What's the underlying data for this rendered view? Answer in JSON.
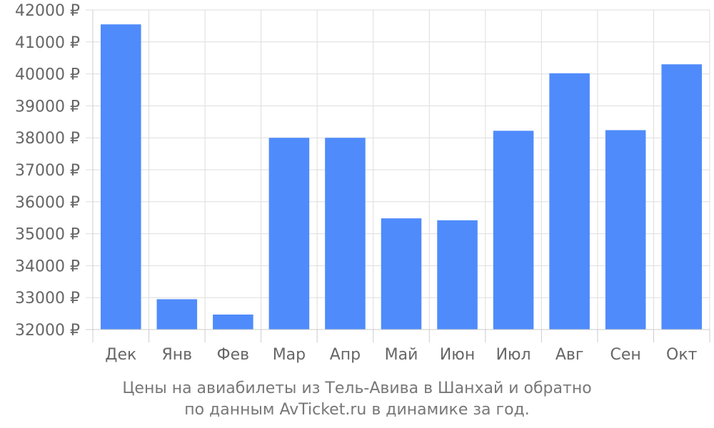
{
  "chart_data": {
    "type": "bar",
    "categories": [
      "Дек",
      "Янв",
      "Фев",
      "Мар",
      "Апр",
      "Май",
      "Июн",
      "Июл",
      "Авг",
      "Сен",
      "Окт"
    ],
    "values": [
      41550,
      32950,
      32470,
      38000,
      38000,
      35480,
      35420,
      38220,
      40020,
      38240,
      40300
    ],
    "yticks": [
      "32000 ₽",
      "33000 ₽",
      "34000 ₽",
      "35000 ₽",
      "36000 ₽",
      "37000 ₽",
      "38000 ₽",
      "39000 ₽",
      "40000 ₽",
      "41000 ₽",
      "42000 ₽"
    ],
    "ylim": [
      32000,
      42000
    ],
    "grid": true,
    "bar_color": "#4f8bfb",
    "caption_lines": [
      "Цены на авиабилеты из Тель-Авива в Шанхай и обратно",
      "по данным AvTicket.ru в динамике за год."
    ]
  }
}
